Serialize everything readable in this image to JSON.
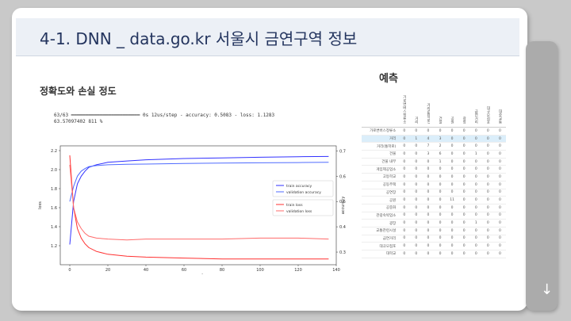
{
  "title": "4-1. DNN _ data.go.kr 서울시 금연구역 정보",
  "accuracy_section": {
    "heading": "정확도와 손실 정도",
    "console_line1": "63/63 ━━━━━━━━━━━━━━━━━━━━━━━━ 0s 12us/step - accuracy: 0.5083 - loss: 1.1283",
    "console_line2": "63.57097402 811 %"
  },
  "prediction_section": {
    "heading": "예측",
    "columns": [
      "",
      "가로변버스정류소",
      "거리",
      "거리(통학로)",
      "건물",
      "공원",
      "광장",
      "금연거리",
      "대규모점포",
      "대중교통"
    ],
    "rows": [
      {
        "label": "가로변버스정류소",
        "values": [
          "0",
          "0",
          "0",
          "0",
          "0",
          "0",
          "0",
          "0",
          "0"
        ]
      },
      {
        "label": "거리",
        "values": [
          "0",
          "1",
          "4",
          "3",
          "0",
          "0",
          "0",
          "0",
          "0"
        ],
        "highlight": true
      },
      {
        "label": "거리(통학로)",
        "values": [
          "0",
          "0",
          "7",
          "2",
          "0",
          "0",
          "0",
          "0",
          "0"
        ]
      },
      {
        "label": "건물",
        "values": [
          "0",
          "0",
          "3",
          "6",
          "0",
          "0",
          "1",
          "0",
          "0"
        ]
      },
      {
        "label": "건물 내부",
        "values": [
          "0",
          "0",
          "0",
          "1",
          "0",
          "0",
          "0",
          "0",
          "0"
        ]
      },
      {
        "label": "게임제공업소",
        "values": [
          "0",
          "0",
          "0",
          "0",
          "0",
          "0",
          "0",
          "0",
          "0"
        ]
      },
      {
        "label": "고등학교",
        "values": [
          "0",
          "0",
          "0",
          "0",
          "0",
          "0",
          "0",
          "0",
          "0"
        ]
      },
      {
        "label": "공동주택",
        "values": [
          "0",
          "0",
          "0",
          "0",
          "0",
          "0",
          "0",
          "0",
          "0"
        ]
      },
      {
        "label": "공연장",
        "values": [
          "0",
          "0",
          "0",
          "0",
          "0",
          "0",
          "0",
          "0",
          "0"
        ]
      },
      {
        "label": "공원",
        "values": [
          "0",
          "0",
          "0",
          "0",
          "11",
          "0",
          "0",
          "0",
          "0"
        ]
      },
      {
        "label": "공중화",
        "values": [
          "0",
          "0",
          "0",
          "0",
          "0",
          "0",
          "0",
          "0",
          "0"
        ]
      },
      {
        "label": "관광숙박업소",
        "values": [
          "0",
          "0",
          "0",
          "0",
          "0",
          "0",
          "0",
          "0",
          "0"
        ]
      },
      {
        "label": "광장",
        "values": [
          "0",
          "0",
          "0",
          "0",
          "0",
          "0",
          "1",
          "0",
          "0"
        ]
      },
      {
        "label": "교통관련시설",
        "values": [
          "0",
          "0",
          "0",
          "0",
          "0",
          "0",
          "0",
          "0",
          "0"
        ]
      },
      {
        "label": "금연거리",
        "values": [
          "0",
          "0",
          "0",
          "0",
          "0",
          "0",
          "0",
          "0",
          "0"
        ]
      },
      {
        "label": "대규모점포",
        "values": [
          "0",
          "0",
          "0",
          "0",
          "0",
          "0",
          "0",
          "0",
          "0"
        ]
      },
      {
        "label": "대학교",
        "values": [
          "0",
          "0",
          "0",
          "0",
          "0",
          "0",
          "0",
          "0",
          "0"
        ]
      }
    ]
  },
  "chart_data": {
    "type": "line",
    "title": "",
    "xlabel": "epoch",
    "ylabel_left": "loss",
    "ylabel_right": "accuracy",
    "xlim": [
      -5,
      140
    ],
    "ylim_left": [
      1.0,
      2.25
    ],
    "ylim_right": [
      0.25,
      0.72
    ],
    "xticks": [
      0,
      20,
      40,
      60,
      80,
      100,
      120,
      140
    ],
    "yticks_left": [
      1.2,
      1.4,
      1.6,
      1.8,
      2.0,
      2.2
    ],
    "yticks_right": [
      0.3,
      0.4,
      0.5,
      0.6,
      0.7
    ],
    "accuracy_legend": "lower right",
    "loss_legend": "center right",
    "series": [
      {
        "name": "train accuracy",
        "axis": "right",
        "color": "#3232ff",
        "x": [
          0,
          2,
          4,
          6,
          8,
          10,
          14,
          20,
          30,
          40,
          60,
          80,
          100,
          120,
          136
        ],
        "y": [
          0.33,
          0.5,
          0.57,
          0.6,
          0.62,
          0.635,
          0.645,
          0.655,
          0.66,
          0.665,
          0.67,
          0.672,
          0.675,
          0.677,
          0.678
        ]
      },
      {
        "name": "validation accuracy",
        "axis": "right",
        "color": "#4f6bff",
        "x": [
          0,
          2,
          4,
          6,
          8,
          10,
          14,
          20,
          30,
          40,
          60,
          80,
          100,
          120,
          136
        ],
        "y": [
          0.5,
          0.56,
          0.6,
          0.62,
          0.63,
          0.638,
          0.642,
          0.645,
          0.647,
          0.648,
          0.65,
          0.652,
          0.653,
          0.654,
          0.655
        ]
      },
      {
        "name": "train loss",
        "axis": "left",
        "color": "#ff3030",
        "x": [
          0,
          2,
          4,
          6,
          8,
          10,
          14,
          20,
          30,
          40,
          60,
          80,
          100,
          120,
          136
        ],
        "y": [
          2.15,
          1.6,
          1.38,
          1.28,
          1.22,
          1.18,
          1.14,
          1.11,
          1.09,
          1.08,
          1.07,
          1.06,
          1.06,
          1.06,
          1.06
        ]
      },
      {
        "name": "validation loss",
        "axis": "left",
        "color": "#ff6b6b",
        "x": [
          0,
          2,
          4,
          6,
          8,
          10,
          14,
          20,
          30,
          40,
          60,
          80,
          100,
          120,
          136
        ],
        "y": [
          2.05,
          1.6,
          1.45,
          1.38,
          1.33,
          1.3,
          1.28,
          1.27,
          1.26,
          1.27,
          1.27,
          1.27,
          1.28,
          1.28,
          1.27
        ]
      }
    ]
  }
}
